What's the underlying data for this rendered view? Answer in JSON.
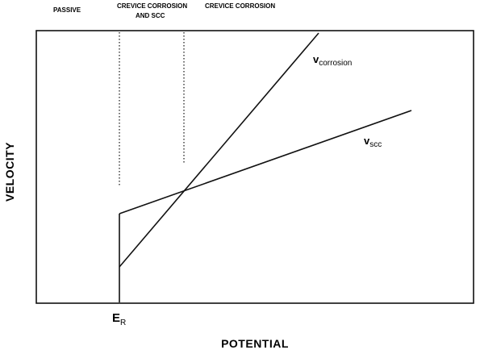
{
  "regions": {
    "passive": "PASSIVE",
    "mixed_line1": "CREVICE CORROSION",
    "mixed_line2": "AND SCC",
    "crevice": "CREVICE CORROSION"
  },
  "curves": {
    "corrosion": {
      "symbol": "v",
      "subscript": "corrosion"
    },
    "scc": {
      "symbol": "v",
      "subscript": "scc"
    }
  },
  "axes": {
    "xlabel": "POTENTIAL",
    "ylabel": "VELOCITY"
  },
  "marker": {
    "symbol": "E",
    "subscript": "R"
  }
}
